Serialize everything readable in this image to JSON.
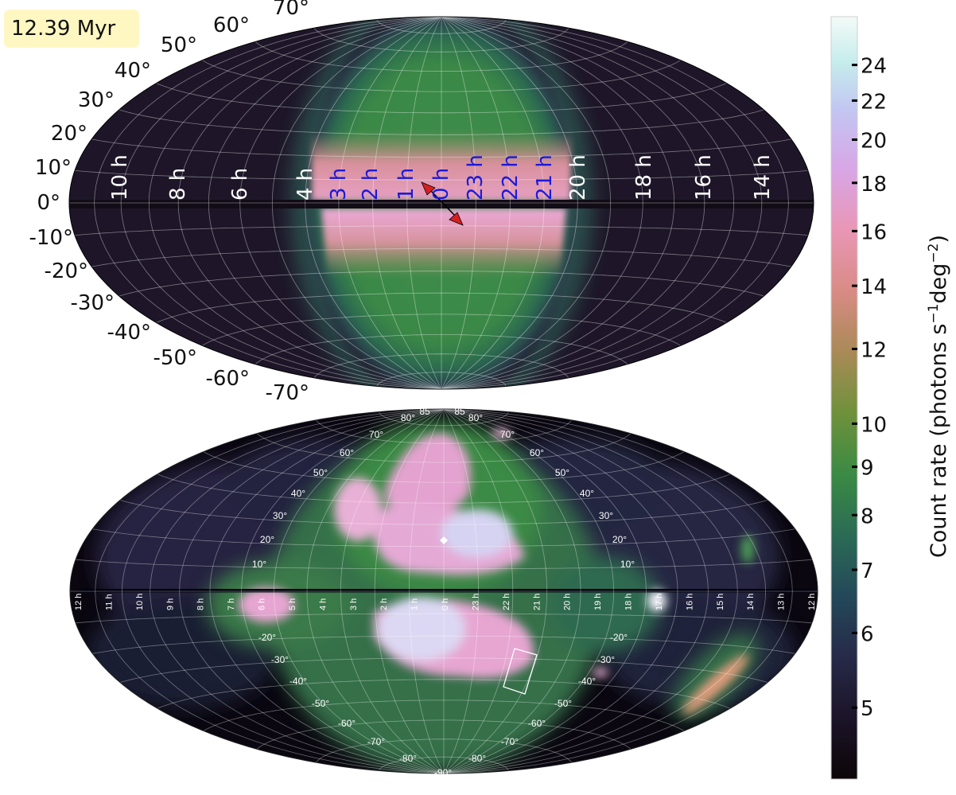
{
  "time_label": "12.39 Myr",
  "colorbar": {
    "label_text": "Count rate (photons s",
    "label_sup1": "−1",
    "label_mid": "deg",
    "label_sup2": "−2",
    "label_end": ")",
    "ticks": [
      5,
      6,
      7,
      8,
      9,
      10,
      12,
      14,
      16,
      18,
      20,
      22,
      24
    ],
    "tick_labels": [
      "5",
      "6",
      "7",
      "8",
      "9",
      "10",
      "12",
      "14",
      "16",
      "18",
      "20",
      "22",
      "24"
    ],
    "range": [
      4.2,
      27
    ],
    "scale": "log",
    "colormap": "cubehelix-like (dark purple to green to pink to white)"
  },
  "top_map": {
    "projection": "Aitoff/Hammer all-sky",
    "lat_labels_north": [
      "10°",
      "20°",
      "30°",
      "40°",
      "50°",
      "60°",
      "70°"
    ],
    "lat_labels_south": [
      "-10°",
      "-20°",
      "-30°",
      "-40°",
      "-50°",
      "-60°",
      "-70°"
    ],
    "equator_label": "0°",
    "ra_labels_white_left": [
      "10 h",
      "8 h",
      "6 h",
      "4 h"
    ],
    "ra_labels_blue": [
      "3 h",
      "2 h",
      "1 h",
      "0 h",
      "23 h",
      "22 h",
      "21 h"
    ],
    "ra_labels_white_right": [
      "20 h",
      "18 h",
      "16 h",
      "14 h"
    ],
    "colors": {
      "map_bg": "#1e1628",
      "label_blue": "#1a1ad8",
      "arrow": "#d81f1f"
    }
  },
  "bottom_map": {
    "projection": "Hammer all-sky",
    "lat_labels_north_left": [
      "10°",
      "20°",
      "30°",
      "40°",
      "50°",
      "60°",
      "70°",
      "80°",
      "85"
    ],
    "lat_labels_north_right": [
      "10°",
      "20°",
      "30°",
      "40°",
      "50°",
      "60°",
      "70°",
      "80°",
      "85"
    ],
    "lat_labels_south_left": [
      "-20°",
      "-30°",
      "-40°",
      "-50°",
      "-60°",
      "-70°",
      "-80°"
    ],
    "lat_labels_south_right": [
      "-20°",
      "-30°",
      "-40°",
      "-50°",
      "-60°",
      "-70°",
      "-80°"
    ],
    "pole_label": "-90°",
    "ra_labels": [
      "12 h",
      "11 h",
      "10 h",
      "9 h",
      "8 h",
      "7 h",
      "6 h",
      "5 h",
      "4 h",
      "3 h",
      "2 h",
      "1 h",
      "0 h",
      "23 h",
      "22 h",
      "21 h",
      "20 h",
      "19 h",
      "18 h",
      "17 h",
      "16 h",
      "15 h",
      "14 h",
      "13 h",
      "12 h"
    ]
  },
  "chart_data": {
    "type": "heatmap",
    "panels": [
      {
        "panel": "top",
        "description_type": "all-sky simulated count-rate map",
        "time": "12.39 Myr"
      },
      {
        "panel": "bottom",
        "description_type": "all-sky observed count-rate map"
      }
    ],
    "colorbar_ticks": [
      5,
      6,
      7,
      8,
      9,
      10,
      12,
      14,
      16,
      18,
      20,
      22,
      24
    ]
  }
}
